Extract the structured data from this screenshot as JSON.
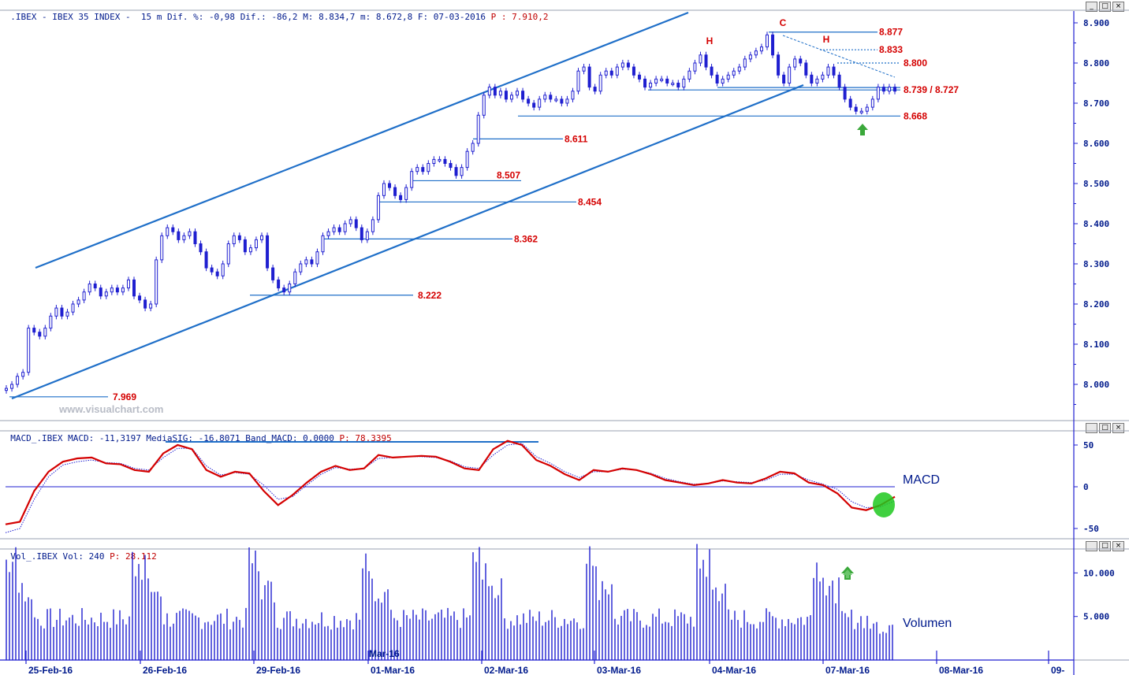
{
  "header": {
    "main": {
      "symbol": ".IBEX - IBEX 35 INDEX -",
      "interval": "15 m",
      "dif_pct_label": "Dif. %:",
      "dif_pct": "-0,98",
      "dif_label": "Dif.:",
      "dif": "-86,2",
      "max_label": "M:",
      "max": "8.834,7",
      "min_label": "m:",
      "min": "8.672,8",
      "date_label": "F:",
      "date": "07-03-2016",
      "p_label": "P :",
      "p": "7.910,2"
    },
    "macd": {
      "text": "MACD_.IBEX MACD: -11,3197 MediaSIG: -16,8071 Band_MACD: 0,0000",
      "p_label": "P:",
      "p": "78,3395"
    },
    "volume": {
      "text": "Vol_.IBEX Vol: 240",
      "p_label": "P:",
      "p": "28.112"
    }
  },
  "window_buttons": [
    "_",
    "□",
    "×"
  ],
  "watermark": "www.visualchart.com",
  "colors": {
    "candle": "#1f1fd0",
    "channel": "#1f6fc8",
    "level_label": "#d40000",
    "macd": "#d40000",
    "signal": "#1f1fd0",
    "volume": "#1f1fd0",
    "arrow": "#3aa83a",
    "highlight": "#1ec81e"
  },
  "chart_data": [
    {
      "type": "candlestick",
      "title": "IBEX 35 INDEX - 15 m",
      "x_labels": [
        "25-Feb-16",
        "26-Feb-16",
        "29-Feb-16",
        "01-Mar-16",
        "02-Mar-16",
        "03-Mar-16",
        "04-Mar-16",
        "07-Mar-16",
        "08-Mar-16",
        "09-"
      ],
      "x_axis_inner_label": "Mar-16",
      "y_ticks": [
        "8.900",
        "8.800",
        "8.700",
        "8.600",
        "8.500",
        "8.400",
        "8.300",
        "8.200",
        "8.100",
        "8.000"
      ],
      "ylim": [
        7.92,
        9.0
      ],
      "levels": [
        {
          "label": "8.877",
          "value": 8.877
        },
        {
          "label": "8.833",
          "value": 8.833
        },
        {
          "label": "8.800",
          "value": 8.8
        },
        {
          "label": "8.739 / 8.727",
          "value": 8.733
        },
        {
          "label": "8.668",
          "value": 8.668
        },
        {
          "label": "8.611",
          "value": 8.611
        },
        {
          "label": "8.507",
          "value": 8.507
        },
        {
          "label": "8.454",
          "value": 8.454
        },
        {
          "label": "8.362",
          "value": 8.362
        },
        {
          "label": "8.222",
          "value": 8.222
        },
        {
          "label": "7.969",
          "value": 7.969
        }
      ],
      "annotations": [
        "H",
        "C",
        "H"
      ],
      "closes": [
        7.99,
        8.0,
        8.02,
        8.03,
        8.14,
        8.13,
        8.12,
        8.14,
        8.17,
        8.19,
        8.17,
        8.18,
        8.2,
        8.21,
        8.23,
        8.25,
        8.24,
        8.22,
        8.23,
        8.24,
        8.23,
        8.24,
        8.26,
        8.22,
        8.21,
        8.19,
        8.2,
        8.31,
        8.37,
        8.39,
        8.38,
        8.36,
        8.37,
        8.38,
        8.35,
        8.33,
        8.29,
        8.28,
        8.27,
        8.3,
        8.35,
        8.37,
        8.36,
        8.33,
        8.34,
        8.36,
        8.37,
        8.29,
        8.26,
        8.24,
        8.23,
        8.25,
        8.28,
        8.3,
        8.31,
        8.3,
        8.33,
        8.37,
        8.38,
        8.39,
        8.38,
        8.4,
        8.41,
        8.39,
        8.36,
        8.38,
        8.41,
        8.47,
        8.5,
        8.49,
        8.47,
        8.46,
        8.49,
        8.53,
        8.54,
        8.53,
        8.55,
        8.56,
        8.56,
        8.55,
        8.54,
        8.52,
        8.54,
        8.58,
        8.6,
        8.67,
        8.72,
        8.74,
        8.72,
        8.73,
        8.71,
        8.72,
        8.73,
        8.71,
        8.7,
        8.69,
        8.71,
        8.72,
        8.71,
        8.71,
        8.7,
        8.71,
        8.73,
        8.78,
        8.79,
        8.74,
        8.73,
        8.77,
        8.78,
        8.77,
        8.79,
        8.8,
        8.79,
        8.77,
        8.76,
        8.74,
        8.75,
        8.76,
        8.76,
        8.75,
        8.75,
        8.74,
        8.76,
        8.78,
        8.8,
        8.82,
        8.79,
        8.77,
        8.75,
        8.76,
        8.77,
        8.78,
        8.79,
        8.81,
        8.82,
        8.83,
        8.84,
        8.87,
        8.82,
        8.77,
        8.75,
        8.79,
        8.81,
        8.8,
        8.77,
        8.75,
        8.76,
        8.77,
        8.79,
        8.77,
        8.74,
        8.71,
        8.69,
        8.68,
        8.68,
        8.69,
        8.71,
        8.74,
        8.73,
        8.74,
        8.73
      ]
    },
    {
      "type": "line",
      "title": "MACD",
      "y_ticks": [
        "50",
        "0",
        "-50"
      ],
      "ylim": [
        -62,
        62
      ],
      "series": [
        {
          "name": "MACD",
          "values": [
            -45,
            -42,
            -5,
            18,
            30,
            34,
            35,
            28,
            27,
            20,
            18,
            40,
            50,
            45,
            20,
            12,
            18,
            16,
            -5,
            -22,
            -10,
            5,
            18,
            25,
            20,
            22,
            38,
            35,
            36,
            37,
            36,
            30,
            22,
            20,
            45,
            55,
            50,
            32,
            25,
            15,
            8,
            20,
            18,
            22,
            20,
            15,
            8,
            5,
            2,
            4,
            8,
            5,
            4,
            10,
            18,
            16,
            5,
            2,
            -8,
            -25,
            -28,
            -22,
            -12
          ]
        },
        {
          "name": "MediaSIG",
          "values": [
            -55,
            -50,
            -15,
            12,
            26,
            30,
            32,
            29,
            28,
            22,
            20,
            35,
            46,
            46,
            25,
            14,
            17,
            15,
            2,
            -15,
            -12,
            2,
            15,
            23,
            21,
            22,
            34,
            35,
            36,
            36,
            35,
            31,
            24,
            22,
            38,
            50,
            52,
            36,
            28,
            18,
            11,
            18,
            18,
            21,
            20,
            16,
            10,
            6,
            3,
            4,
            7,
            6,
            5,
            8,
            15,
            15,
            8,
            3,
            -3,
            -18,
            -25,
            -24,
            -17
          ]
        }
      ]
    },
    {
      "type": "bar",
      "title": "Volumen",
      "y_ticks": [
        "10.000",
        "5.000"
      ],
      "ylim": [
        0,
        14000
      ]
    }
  ],
  "labels": {
    "macd": "MACD",
    "volume": "Volumen"
  }
}
